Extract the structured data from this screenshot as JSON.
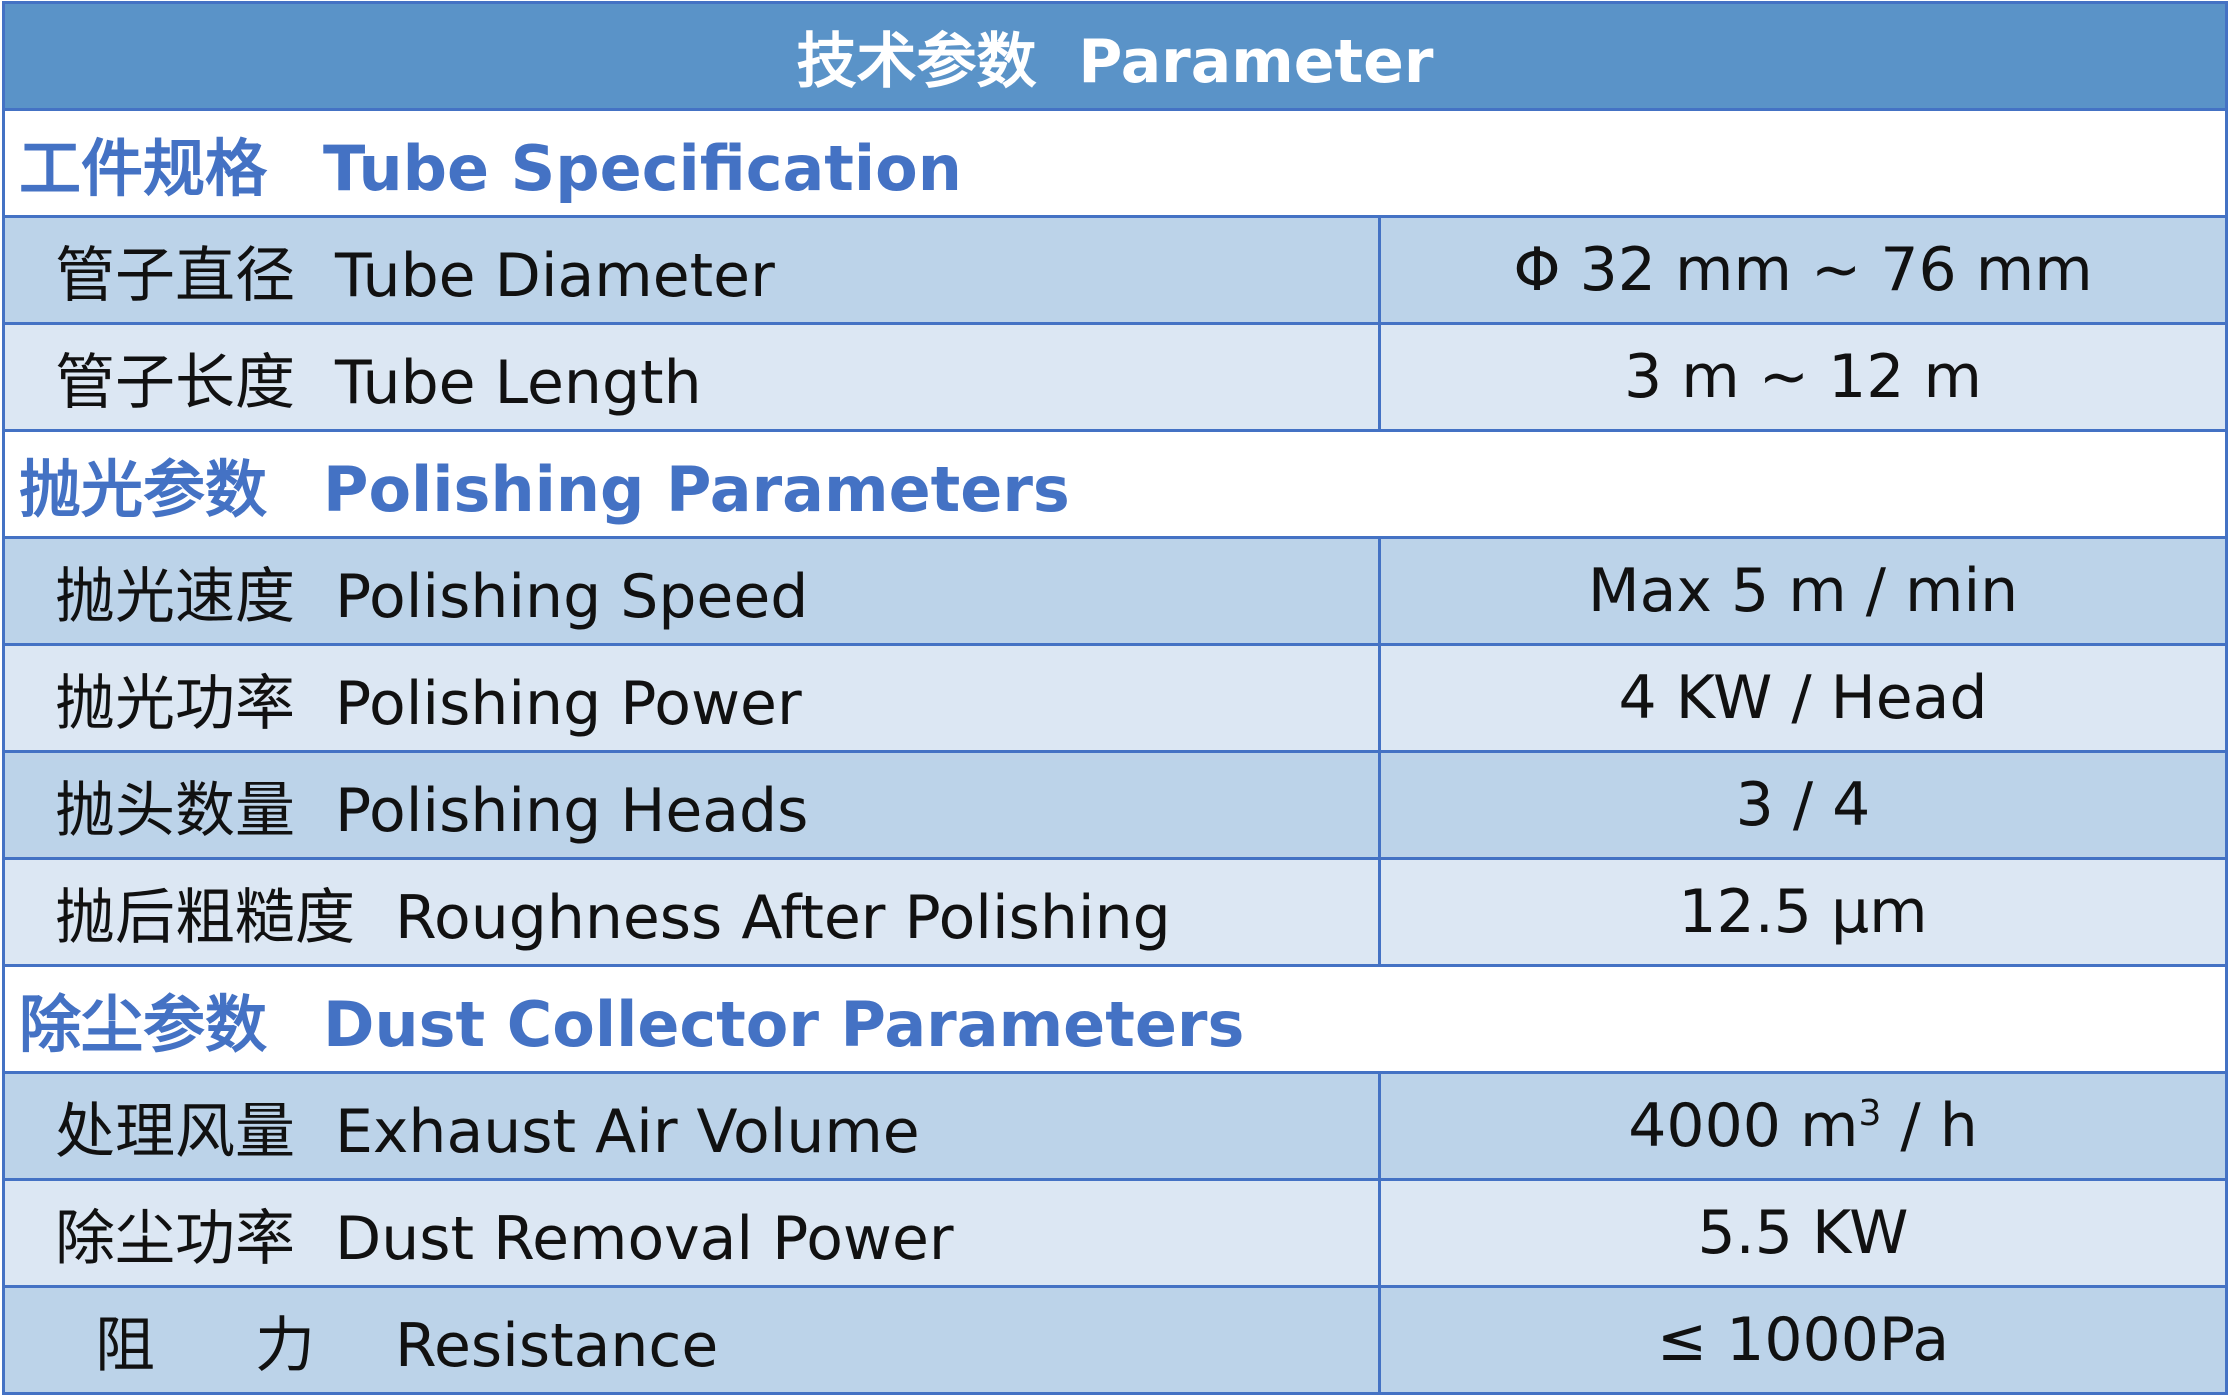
{
  "title": {
    "zh": "技术参数",
    "en": "Parameter"
  },
  "colors": {
    "header_bg": "#5A93C8",
    "accent": "#4472C4",
    "row_dark": "#BCD3E9",
    "row_light": "#DCE7F3"
  },
  "sections": [
    {
      "zh": "工件规格",
      "en": "Tube Specification",
      "rows": [
        {
          "zh": "管子直径",
          "en": "Tube Diameter",
          "value": "Φ 32 mm ~ 76 mm"
        },
        {
          "zh": "管子长度",
          "en": "Tube Length",
          "value": "3 m ~ 12 m"
        }
      ]
    },
    {
      "zh": "抛光参数",
      "en": "Polishing Parameters",
      "rows": [
        {
          "zh": "抛光速度",
          "en": "Polishing Speed",
          "value": "Max 5 m / min"
        },
        {
          "zh": "抛光功率",
          "en": "Polishing Power",
          "value": "4 KW / Head"
        },
        {
          "zh": "抛头数量",
          "en": "Polishing Heads",
          "value": "3 / 4"
        },
        {
          "zh": "抛后粗糙度",
          "en": "Roughness After Polishing",
          "value": "12.5 μm"
        }
      ]
    },
    {
      "zh": "除尘参数",
      "en": "Dust Collector Parameters",
      "rows": [
        {
          "zh": "处理风量",
          "en": "Exhaust Air Volume",
          "value_main": "4000 m",
          "value_sup": "3",
          "value_tail": " / h"
        },
        {
          "zh": "除尘功率",
          "en": "Dust Removal Power",
          "value": "5.5 KW"
        },
        {
          "zh": "阻　力",
          "en": "Resistance",
          "value": "≤ 1000Pa"
        }
      ]
    }
  ]
}
